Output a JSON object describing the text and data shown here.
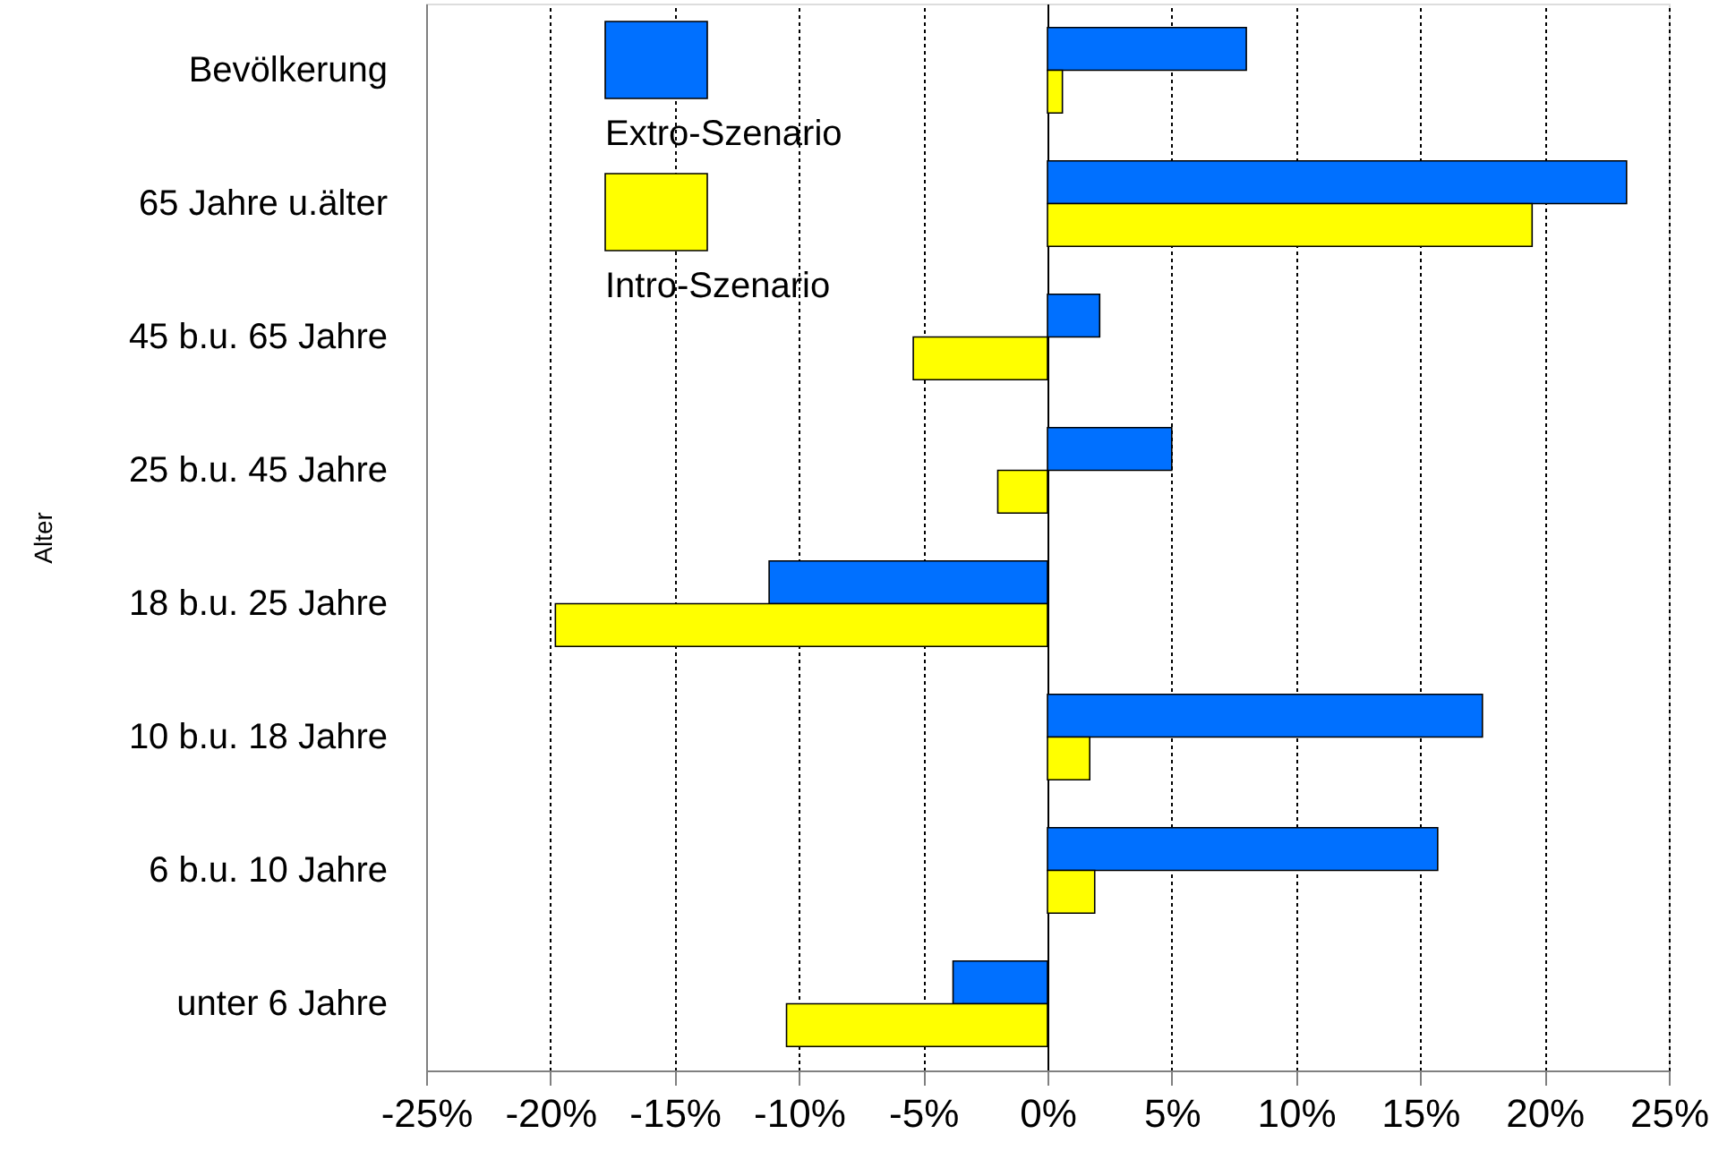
{
  "chart_data": {
    "type": "bar",
    "orientation": "horizontal",
    "ylabel": "Alter",
    "categories": [
      "Bevölkerung",
      "65 Jahre u.älter",
      "45 b.u. 65 Jahre",
      "25 b.u. 45 Jahre",
      "18 b.u. 25 Jahre",
      "10 b.u. 18 Jahre",
      "6 b.u. 10 Jahre",
      "unter 6 Jahre"
    ],
    "series": [
      {
        "name": "Extro-Szenario",
        "color": "#0070ff",
        "values": [
          8.0,
          23.3,
          2.1,
          5.0,
          -11.2,
          17.5,
          15.7,
          -3.8
        ]
      },
      {
        "name": "Intro-Szenario",
        "color": "#ffff00",
        "values": [
          0.6,
          19.5,
          -5.4,
          -2.0,
          -19.8,
          1.7,
          1.9,
          -10.5
        ]
      }
    ],
    "xlim": [
      -25,
      25
    ],
    "xticks": [
      {
        "value": -25,
        "label": "-25%"
      },
      {
        "value": -20,
        "label": "-20%"
      },
      {
        "value": -15,
        "label": "-15%"
      },
      {
        "value": -10,
        "label": "-10%"
      },
      {
        "value": -5,
        "label": "-5%"
      },
      {
        "value": 0,
        "label": "0%"
      },
      {
        "value": 5,
        "label": "5%"
      },
      {
        "value": 10,
        "label": "10%"
      },
      {
        "value": 15,
        "label": "15%"
      },
      {
        "value": 20,
        "label": "20%"
      },
      {
        "value": 25,
        "label": "25%"
      }
    ],
    "grid": "x",
    "legend": "top left"
  }
}
